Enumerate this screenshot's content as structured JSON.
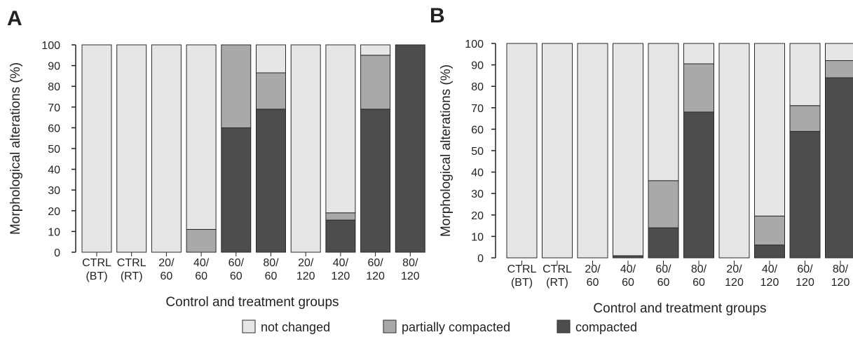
{
  "figure": {
    "colors": {
      "not_changed": "#e6e6e6",
      "partially_compacted": "#a9a9a9",
      "compacted": "#4d4d4d",
      "bar_outline": "#2a2a2a"
    },
    "legend": {
      "items": [
        {
          "key": "not_changed",
          "label": "not changed"
        },
        {
          "key": "partially_compacted",
          "label": "partially compacted"
        },
        {
          "key": "compacted",
          "label": "compacted"
        }
      ]
    }
  },
  "chart_data": [
    {
      "type": "bar",
      "stacked": true,
      "panel": "A",
      "xlabel": "Control and treatment groups",
      "ylabel": "Morphological alterations (%)",
      "ylim": [
        0,
        100
      ],
      "yticks": [
        "0",
        "10",
        "20",
        "30",
        "40",
        "50",
        "60",
        "70",
        "80",
        "90",
        "100"
      ],
      "categories": [
        [
          "CTRL",
          "(BT)"
        ],
        [
          "CTRL",
          "(RT)"
        ],
        [
          "20/",
          "60"
        ],
        [
          "40/",
          "60"
        ],
        [
          "60/",
          "60"
        ],
        [
          "80/",
          "60"
        ],
        [
          "20/",
          "120"
        ],
        [
          "40/",
          "120"
        ],
        [
          "60/",
          "120"
        ],
        [
          "80/",
          "120"
        ]
      ],
      "series": [
        {
          "name": "compacted",
          "values": [
            0,
            0,
            0,
            0,
            60,
            69,
            0,
            15.5,
            69,
            100
          ]
        },
        {
          "name": "partially compacted",
          "values": [
            0,
            0,
            0,
            11,
            40,
            17.5,
            0,
            3.5,
            26,
            0
          ]
        },
        {
          "name": "not changed",
          "values": [
            100,
            100,
            100,
            89,
            0,
            13.5,
            100,
            81,
            5,
            0
          ]
        }
      ]
    },
    {
      "type": "bar",
      "stacked": true,
      "panel": "B",
      "xlabel": "Control and treatment groups",
      "ylabel": "Morphological alterations (%)",
      "ylim": [
        0,
        100
      ],
      "yticks": [
        "0",
        "10",
        "20",
        "30",
        "40",
        "50",
        "60",
        "70",
        "80",
        "90",
        "100"
      ],
      "categories": [
        [
          "CTRL",
          "(BT)"
        ],
        [
          "CTRL",
          "(RT)"
        ],
        [
          "20/",
          "60"
        ],
        [
          "40/",
          "60"
        ],
        [
          "60/",
          "60"
        ],
        [
          "80/",
          "60"
        ],
        [
          "20/",
          "120"
        ],
        [
          "40/",
          "120"
        ],
        [
          "60/",
          "120"
        ],
        [
          "80/",
          "120"
        ]
      ],
      "series": [
        {
          "name": "compacted",
          "values": [
            0,
            0,
            0,
            1,
            14,
            68,
            0,
            6,
            59,
            84
          ]
        },
        {
          "name": "partially compacted",
          "values": [
            0,
            0,
            0,
            0,
            22,
            22.5,
            0,
            13.5,
            12,
            8
          ]
        },
        {
          "name": "not changed",
          "values": [
            100,
            100,
            100,
            99,
            64,
            9.5,
            100,
            80.5,
            29,
            8
          ]
        }
      ]
    }
  ]
}
